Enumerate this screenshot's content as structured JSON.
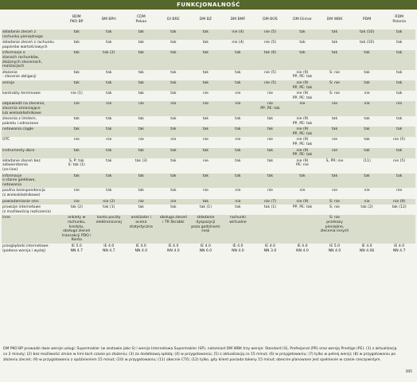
{
  "header": {
    "title": "FUNKCJONALNOŚĆ"
  },
  "table": {
    "columns": [
      "",
      "BDM\nPKO BP",
      "BM BPH",
      "CDM\nPekao",
      "DI BRE",
      "DM BZ",
      "DM BMF",
      "DM BOŚ",
      "DM Elimar",
      "DM WBK",
      "PDM",
      "RDM\nPolonia"
    ],
    "rows": [
      [
        "składanie zleceń z\nrachunku pieniężnego",
        "tak",
        "tak",
        "tak",
        "tak",
        "tak",
        "nie (4)",
        "nie (5)",
        "tak",
        "tak",
        "tak (10)",
        "tak"
      ],
      [
        "składanie zleceń z rachunku\npapierów wartościowych",
        "tak",
        "tak",
        "tak",
        "tak",
        "tak",
        "nie (4)",
        "nie (5)",
        "tak",
        "tak",
        "tak (10)",
        "tak"
      ],
      [
        "informacje o\nstanach rachunków,\nzłożonych zleceniach,\nrealizacjach",
        "tak",
        "tak (2)",
        "tak",
        "tak",
        "tak",
        "tak",
        "tak (6)",
        "tak",
        "tak",
        "tak",
        "tak"
      ],
      [
        "złożenie\n- zlecenie obligacji",
        "tak",
        "tak",
        "tak",
        "tak",
        "tak",
        "tak",
        "nie (5)",
        "nie (9)\nPP, PE: tak",
        "S: nie",
        "tak",
        "tak"
      ],
      [
        "emisje",
        "tak",
        "tak",
        "tak",
        "tak",
        "tak",
        "tak",
        "nie (5)",
        "nie (9)\nPP, PE: tak",
        "S: nie",
        "tak",
        "tak"
      ],
      [
        "kontrakty terminowe",
        "nie (1)",
        "tak",
        "tak",
        "tak",
        "nie",
        "nie",
        "nie",
        "nie (9)\nPP, PE: tak",
        "S: nie",
        "nie",
        "tak"
      ],
      [
        "odpowiedź na zlecenie,\nzlecenia zmieniające\nlub wieloskładnikowe",
        "nie",
        "nie",
        "nie",
        "nie",
        "nie",
        "nie",
        "nie\nPP, PE: tak",
        "nie",
        "nie",
        "nie",
        "nie"
      ],
      [
        "zlecenia z limitem,\npakietu i odroczone",
        "tak",
        "tak",
        "tak",
        "tak",
        "tak",
        "tak",
        "tak",
        "nie (9)\nPP, PE: tak",
        "tak",
        "tak",
        "tak"
      ],
      [
        "notowania ciągłe",
        "tak",
        "tak",
        "tak",
        "tak",
        "tak",
        "tak",
        "tak",
        "nie (9)\nPP, PE: tak",
        "tak",
        "tak",
        "tak"
      ],
      [
        "OTC",
        "nie",
        "nie",
        "nie",
        "nie",
        "nie",
        "nie",
        "nie",
        "nie (9)\nPP, PE: tak",
        "nie",
        "tak",
        "nie (5)"
      ],
      [
        "instrumenty obce",
        "tak",
        "tak",
        "tak",
        "tak",
        "tak",
        "tak",
        "tak",
        "nie (9)\nPP, PE: tak",
        "nie",
        "tak",
        "tak"
      ],
      [
        "składanie zleceń bez\nzatwierdzenia\n(on-line)",
        "S, P: tak\nS: tak (1)",
        "tak",
        "tak (3)",
        "tak",
        "nie",
        "tak",
        "tak",
        "nie (9)\nPE: nie",
        "S, PR: nie",
        "(11)",
        "nie (5)"
      ],
      [
        "informacje\no stanie giełdowe,\nnotowania",
        "tak",
        "tak",
        "tak",
        "tak",
        "tak",
        "tak",
        "tak",
        "tak",
        "tak",
        "tak",
        "tak"
      ],
      [
        "poufna korespondencja\n(z wieloskładnikowe)",
        "nie",
        "tak",
        "tak",
        "tak",
        "nie",
        "nie",
        "nie",
        "nie",
        "nie",
        "nie",
        "nie"
      ],
      [
        "powiadamianie sms",
        "nie",
        "nie (2)",
        "nie",
        "nie",
        "tak",
        "nie",
        "nie (7)",
        "nie (9)",
        "S: nie",
        "nie",
        "nie (9)"
      ],
      [
        "prowizje internetowe\n(z możliwością rozliczenia)",
        "tak (2)",
        "tak (1)",
        "tak",
        "tak",
        "tak (1)",
        "tak",
        "tak (1)",
        "PP, PE: tak",
        "S: nie",
        "tak (2)",
        "tak (12)"
      ],
      [
        "inne",
        "ankiety w\nrachunku,\nkredytu,\nobsługa zleceń\ntransakcji PDO i Konto",
        "konto poczty\nelektronicznej",
        "analizator i\nocena statystyczna",
        "obsługa zleceń\ni TR Skrabki",
        "składanie dyspozycji\npoza godzinami\nsesji",
        "rachunki\nwirtualne",
        "",
        "",
        "S: nie\nprzekazy\npieniężne,\nzlecenia innych",
        "",
        ""
      ],
      [
        "przeglądarki internetowe\n(podana wersja i wyżej)",
        "IE 5.0\nNN 4.7",
        "IE 4.0\nNN 4.7",
        "IE 4.0\nNN 4.0",
        "IE 4.0\nNN 4.0",
        "IE 4.0\nNN 6.0",
        "IE 4.0\nNN 4.0",
        "IE 4.0\nNN 3.0",
        "IE 4.0\nNN 4.0",
        "IE 5.0\nNN 4.0",
        "IE 4.0\nNN 4.06",
        "IE 4.0\nNN 4.7"
      ]
    ]
  },
  "footnote": "DM PKO BP prowadzi dwie wersje usługi: Supermakler (w zestawie jako S) i wersja Internetowa Supermakler (SP), natomiast DM WBK trzy wersje: Standard (S), Profesjonal (PR) oraz wersję Prestige (PE). (1) z aktualizacją co 2 minuty; (2) bez możliwości zmian w limi-tach czasie po złożeniu; (3) za dodatkową opłatą; (4) w przygotowaniu; (5) z aktualizacją co 15 minut; (6) w przygotowaniu; (7) tylko w pełnej wersji; (8) w przygotowaniu po złożeniu zleceń; (9) w przygotowaniu z opóźnieniem 15 minut; (10) w przygotowaniu; (11) obecnie CTO; (12) tylko, gdy klient posiada tokeny 15 minut; obecnie planowane jest spełnienie w czasie rzeczywistym.",
  "page_number": "395"
}
